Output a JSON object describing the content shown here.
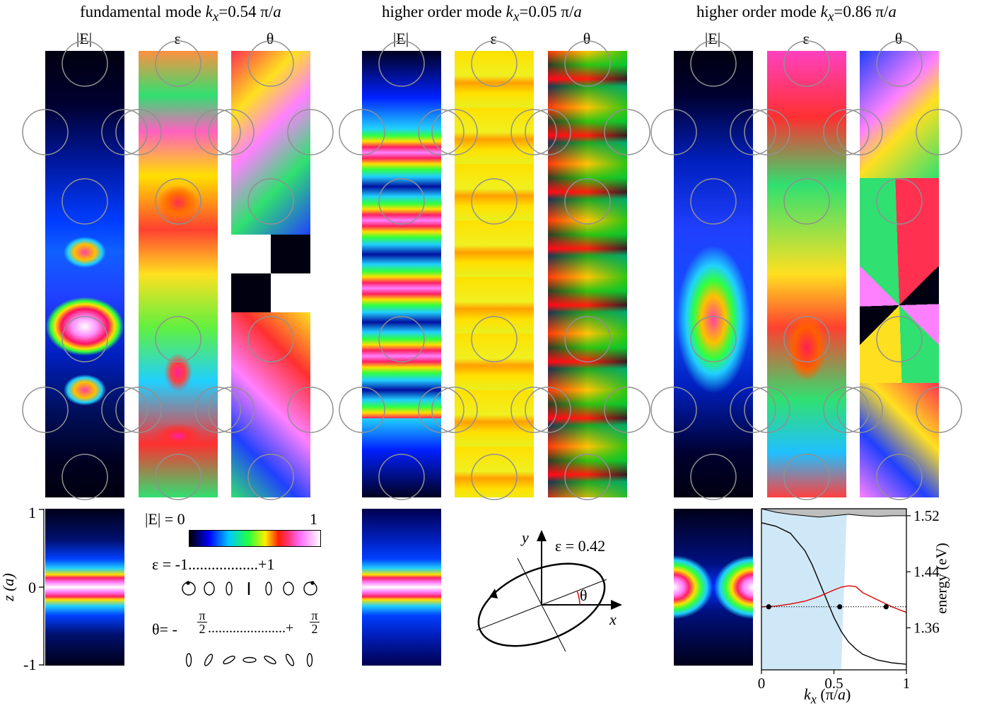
{
  "titles": [
    {
      "prefix": "fundamental mode ",
      "k": "k",
      "sub": "x",
      "suffix": "=0.54 π/",
      "a": "a"
    },
    {
      "prefix": "higher order mode ",
      "k": "k",
      "sub": "x",
      "suffix": "=0.05 π/",
      "a": "a"
    },
    {
      "prefix": "higher order mode ",
      "k": "k",
      "sub": "x",
      "suffix": "=0.86 π/",
      "a": "a"
    }
  ],
  "column_headers": [
    "|E|",
    "ε",
    "θ"
  ],
  "legend": {
    "e_scale_left": "|E| = 0",
    "e_scale_right": "1",
    "eps_scale": "ε = -1..................+1",
    "theta_prefix": "θ= -",
    "theta_dots": "......................+",
    "pi": "π",
    "two": "2"
  },
  "profile_axis": {
    "label": "z (a)",
    "ticks": [
      "1",
      "0",
      "-1"
    ]
  },
  "ellipse_diagram": {
    "eps_label": "ε = 0.42",
    "theta_label": "θ",
    "x_label": "x",
    "y_label": "y"
  },
  "colors": {
    "band_fill": "#cfe8f7",
    "band_curve": "#000000",
    "mode_curve": "#e00000",
    "continuum": "#bebebe"
  },
  "chart_data": {
    "type": "line",
    "xlabel": "k_x (π/a)",
    "ylabel": "energy (eV)",
    "xlim": [
      0,
      1
    ],
    "ylim": [
      1.3,
      1.53
    ],
    "x_ticks": [
      "0",
      "0.5",
      "1"
    ],
    "y_ticks": [
      "1.52",
      "1.44",
      "1.36"
    ],
    "series": [
      {
        "x": [
          0,
          0.1,
          0.2,
          0.3,
          0.35,
          0.4,
          0.45,
          0.5,
          0.55,
          0.6,
          0.65,
          0.7,
          0.8,
          0.9,
          1.0
        ],
        "y": [
          1.51,
          1.505,
          1.495,
          1.47,
          1.45,
          1.425,
          1.4,
          1.375,
          1.355,
          1.34,
          1.33,
          1.322,
          1.314,
          1.31,
          1.308
        ]
      },
      {
        "x": [
          0,
          0.1,
          0.2,
          0.3,
          0.4,
          0.5,
          0.55,
          0.6,
          0.65,
          0.7,
          0.8,
          0.9,
          1.0
        ],
        "y": [
          1.39,
          1.391,
          1.394,
          1.398,
          1.405,
          1.414,
          1.418,
          1.42,
          1.419,
          1.41,
          1.4,
          1.39,
          1.382
        ]
      }
    ],
    "reference_energy": 1.39,
    "markers": [
      {
        "x": 0.05,
        "y": 1.39
      },
      {
        "x": 0.54,
        "y": 1.39
      },
      {
        "x": 0.86,
        "y": 1.39
      }
    ],
    "band_region": {
      "x_left": [
        0,
        0
      ],
      "x_right": [
        0.59,
        0.55
      ]
    },
    "continuum_top": [
      1.53,
      1.525,
      1.522,
      1.52,
      1.518,
      1.52,
      1.522,
      1.52,
      1.519,
      1.52,
      1.52
    ]
  }
}
